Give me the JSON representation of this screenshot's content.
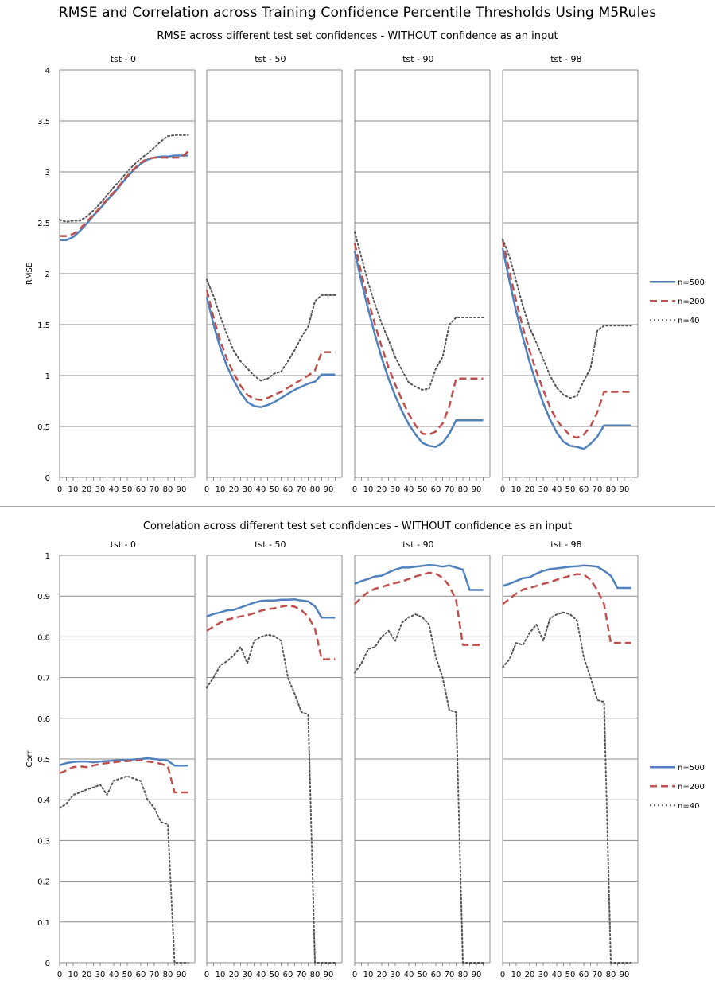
{
  "title": "RMSE and Correlation across Training Confidence Percentile Thresholds Using M5Rules",
  "chart_data": [
    {
      "type": "line",
      "title": "RMSE across different test set confidences - WITHOUT confidence as an input",
      "ylabel": "RMSE",
      "ylim": [
        0,
        4
      ],
      "yticks": [
        "0",
        "0.5",
        "1",
        "1.5",
        "2",
        "2.5",
        "3",
        "3.5",
        "4"
      ],
      "xticks": [
        "0",
        "10",
        "20",
        "30",
        "40",
        "50",
        "60",
        "70",
        "80",
        "90"
      ],
      "x": [
        0,
        5,
        10,
        15,
        20,
        25,
        30,
        35,
        40,
        45,
        50,
        55,
        60,
        65,
        70,
        75,
        80,
        85,
        90,
        95
      ],
      "grid": true,
      "legend_position": "right",
      "legend_labels": [
        "n=500",
        "n=200",
        "n=40"
      ],
      "panels": [
        {
          "label": "tst - 0",
          "series": [
            {
              "name": "n=500",
              "color": "#4f81bd",
              "dash": "solid",
              "values": [
                2.33,
                2.33,
                2.36,
                2.42,
                2.49,
                2.57,
                2.64,
                2.72,
                2.79,
                2.87,
                2.95,
                3.02,
                3.08,
                3.12,
                3.14,
                3.15,
                3.15,
                3.16,
                3.16,
                3.16
              ]
            },
            {
              "name": "n=200",
              "color": "#c0504d",
              "dash": "dashed",
              "values": [
                2.37,
                2.37,
                2.39,
                2.44,
                2.51,
                2.58,
                2.65,
                2.73,
                2.8,
                2.88,
                2.96,
                3.03,
                3.09,
                3.13,
                3.14,
                3.14,
                3.14,
                3.14,
                3.14,
                3.2
              ]
            },
            {
              "name": "n=40",
              "color": "#555555",
              "dash": "dotted",
              "values": [
                2.53,
                2.51,
                2.52,
                2.52,
                2.56,
                2.62,
                2.69,
                2.77,
                2.85,
                2.92,
                3.0,
                3.07,
                3.13,
                3.18,
                3.24,
                3.3,
                3.35,
                3.36,
                3.36,
                3.36
              ]
            }
          ]
        },
        {
          "label": "tst - 50",
          "series": [
            {
              "name": "n=500",
              "color": "#4f81bd",
              "dash": "solid",
              "values": [
                1.77,
                1.5,
                1.27,
                1.09,
                0.95,
                0.83,
                0.74,
                0.7,
                0.69,
                0.71,
                0.74,
                0.78,
                0.82,
                0.86,
                0.89,
                0.92,
                0.94,
                1.01,
                1.01,
                1.01
              ]
            },
            {
              "name": "n=200",
              "color": "#c0504d",
              "dash": "dashed",
              "values": [
                1.84,
                1.57,
                1.34,
                1.16,
                1.02,
                0.9,
                0.81,
                0.77,
                0.76,
                0.78,
                0.81,
                0.84,
                0.88,
                0.92,
                0.96,
                1.0,
                1.05,
                1.23,
                1.23,
                1.23
              ]
            },
            {
              "name": "n=40",
              "color": "#555555",
              "dash": "dotted",
              "values": [
                1.94,
                1.78,
                1.58,
                1.4,
                1.24,
                1.14,
                1.07,
                1.0,
                0.95,
                0.97,
                1.02,
                1.04,
                1.14,
                1.25,
                1.38,
                1.48,
                1.73,
                1.79,
                1.79,
                1.79
              ]
            }
          ]
        },
        {
          "label": "tst - 90",
          "series": [
            {
              "name": "n=500",
              "color": "#4f81bd",
              "dash": "solid",
              "values": [
                2.22,
                1.92,
                1.65,
                1.4,
                1.17,
                0.97,
                0.8,
                0.65,
                0.52,
                0.42,
                0.34,
                0.31,
                0.3,
                0.34,
                0.43,
                0.56,
                0.56,
                0.56,
                0.56,
                0.56
              ]
            },
            {
              "name": "n=200",
              "color": "#c0504d",
              "dash": "dashed",
              "values": [
                2.3,
                2.0,
                1.74,
                1.5,
                1.28,
                1.08,
                0.91,
                0.76,
                0.62,
                0.51,
                0.43,
                0.42,
                0.45,
                0.53,
                0.7,
                0.97,
                0.97,
                0.97,
                0.97,
                0.97
              ]
            },
            {
              "name": "n=40",
              "color": "#555555",
              "dash": "dotted",
              "values": [
                2.41,
                2.16,
                1.91,
                1.7,
                1.51,
                1.35,
                1.18,
                1.05,
                0.93,
                0.89,
                0.86,
                0.87,
                1.07,
                1.18,
                1.5,
                1.57,
                1.57,
                1.57,
                1.57,
                1.57
              ]
            }
          ]
        },
        {
          "label": "tst - 98",
          "series": [
            {
              "name": "n=500",
              "color": "#4f81bd",
              "dash": "solid",
              "values": [
                2.25,
                1.93,
                1.63,
                1.37,
                1.13,
                0.92,
                0.73,
                0.57,
                0.44,
                0.35,
                0.31,
                0.3,
                0.28,
                0.33,
                0.4,
                0.51,
                0.51,
                0.51,
                0.51,
                0.51
              ]
            },
            {
              "name": "n=200",
              "color": "#c0504d",
              "dash": "dashed",
              "values": [
                2.33,
                2.02,
                1.73,
                1.47,
                1.24,
                1.04,
                0.86,
                0.69,
                0.56,
                0.48,
                0.41,
                0.39,
                0.42,
                0.5,
                0.64,
                0.84,
                0.84,
                0.84,
                0.84,
                0.84
              ]
            },
            {
              "name": "n=40",
              "color": "#555555",
              "dash": "dotted",
              "values": [
                2.34,
                2.17,
                1.93,
                1.68,
                1.47,
                1.32,
                1.16,
                1.0,
                0.88,
                0.81,
                0.78,
                0.8,
                0.95,
                1.07,
                1.44,
                1.49,
                1.49,
                1.49,
                1.49,
                1.49
              ]
            }
          ]
        }
      ]
    },
    {
      "type": "line",
      "title": "Correlation across different test set confidences - WITHOUT confidence as an input",
      "ylabel": "Corr",
      "ylim": [
        0,
        1
      ],
      "yticks": [
        "0",
        "0.1",
        "0.2",
        "0.3",
        "0.4",
        "0.5",
        "0.6",
        "0.7",
        "0.8",
        "0.9",
        "1"
      ],
      "xticks": [
        "0",
        "10",
        "20",
        "30",
        "40",
        "50",
        "60",
        "70",
        "80",
        "90"
      ],
      "x": [
        0,
        5,
        10,
        15,
        20,
        25,
        30,
        35,
        40,
        45,
        50,
        55,
        60,
        65,
        70,
        75,
        80,
        85,
        90,
        95
      ],
      "grid": true,
      "legend_position": "right",
      "legend_labels": [
        "n=500",
        "n=200",
        "n=40"
      ],
      "panels": [
        {
          "label": "tst - 0",
          "series": [
            {
              "name": "n=500",
              "color": "#4f81bd",
              "dash": "solid",
              "values": [
                0.485,
                0.49,
                0.493,
                0.494,
                0.494,
                0.492,
                0.494,
                0.495,
                0.496,
                0.497,
                0.497,
                0.499,
                0.5,
                0.502,
                0.5,
                0.498,
                0.496,
                0.484,
                0.484,
                0.484
              ]
            },
            {
              "name": "n=200",
              "color": "#c0504d",
              "dash": "dashed",
              "values": [
                0.465,
                0.472,
                0.48,
                0.482,
                0.48,
                0.484,
                0.488,
                0.49,
                0.492,
                0.494,
                0.495,
                0.496,
                0.497,
                0.494,
                0.492,
                0.488,
                0.482,
                0.418,
                0.418,
                0.418
              ]
            },
            {
              "name": "n=40",
              "color": "#555555",
              "dash": "dotted",
              "values": [
                0.38,
                0.39,
                0.412,
                0.418,
                0.425,
                0.43,
                0.437,
                0.412,
                0.447,
                0.452,
                0.458,
                0.452,
                0.446,
                0.4,
                0.38,
                0.345,
                0.34,
                0.0,
                0.0,
                0.0
              ]
            }
          ]
        },
        {
          "label": "tst - 50",
          "series": [
            {
              "name": "n=500",
              "color": "#4f81bd",
              "dash": "solid",
              "values": [
                0.85,
                0.856,
                0.86,
                0.865,
                0.866,
                0.872,
                0.878,
                0.884,
                0.888,
                0.889,
                0.889,
                0.891,
                0.891,
                0.892,
                0.889,
                0.887,
                0.875,
                0.847,
                0.847,
                0.847
              ]
            },
            {
              "name": "n=200",
              "color": "#c0504d",
              "dash": "dashed",
              "values": [
                0.815,
                0.825,
                0.835,
                0.842,
                0.846,
                0.85,
                0.853,
                0.858,
                0.864,
                0.868,
                0.87,
                0.874,
                0.877,
                0.874,
                0.865,
                0.85,
                0.82,
                0.745,
                0.745,
                0.745
              ]
            },
            {
              "name": "n=40",
              "color": "#555555",
              "dash": "dotted",
              "values": [
                0.675,
                0.7,
                0.73,
                0.74,
                0.755,
                0.775,
                0.735,
                0.79,
                0.8,
                0.805,
                0.802,
                0.79,
                0.7,
                0.66,
                0.615,
                0.61,
                0.0,
                0.0,
                0.0,
                0.0
              ]
            }
          ]
        },
        {
          "label": "tst - 90",
          "series": [
            {
              "name": "n=500",
              "color": "#4f81bd",
              "dash": "solid",
              "values": [
                0.93,
                0.937,
                0.942,
                0.948,
                0.95,
                0.958,
                0.965,
                0.97,
                0.97,
                0.972,
                0.974,
                0.976,
                0.975,
                0.972,
                0.975,
                0.97,
                0.965,
                0.915,
                0.915,
                0.915
              ]
            },
            {
              "name": "n=200",
              "color": "#c0504d",
              "dash": "dashed",
              "values": [
                0.88,
                0.897,
                0.91,
                0.918,
                0.922,
                0.928,
                0.932,
                0.936,
                0.942,
                0.948,
                0.953,
                0.957,
                0.955,
                0.945,
                0.925,
                0.89,
                0.78,
                0.78,
                0.78,
                0.78
              ]
            },
            {
              "name": "n=40",
              "color": "#555555",
              "dash": "dotted",
              "values": [
                0.712,
                0.735,
                0.77,
                0.775,
                0.8,
                0.815,
                0.79,
                0.835,
                0.848,
                0.855,
                0.848,
                0.83,
                0.75,
                0.7,
                0.62,
                0.615,
                0.0,
                0.0,
                0.0,
                0.0
              ]
            }
          ]
        },
        {
          "label": "tst - 98",
          "series": [
            {
              "name": "n=500",
              "color": "#4f81bd",
              "dash": "solid",
              "values": [
                0.925,
                0.93,
                0.937,
                0.944,
                0.946,
                0.955,
                0.962,
                0.966,
                0.968,
                0.97,
                0.972,
                0.973,
                0.975,
                0.974,
                0.972,
                0.962,
                0.95,
                0.92,
                0.92,
                0.92
              ]
            },
            {
              "name": "n=200",
              "color": "#c0504d",
              "dash": "dashed",
              "values": [
                0.88,
                0.893,
                0.906,
                0.916,
                0.92,
                0.925,
                0.93,
                0.934,
                0.94,
                0.945,
                0.95,
                0.954,
                0.953,
                0.94,
                0.915,
                0.88,
                0.785,
                0.785,
                0.785,
                0.785
              ]
            },
            {
              "name": "n=40",
              "color": "#555555",
              "dash": "dotted",
              "values": [
                0.725,
                0.745,
                0.785,
                0.78,
                0.81,
                0.83,
                0.79,
                0.845,
                0.855,
                0.86,
                0.855,
                0.84,
                0.75,
                0.7,
                0.645,
                0.64,
                0.0,
                0.0,
                0.0,
                0.0
              ]
            }
          ]
        }
      ]
    }
  ]
}
